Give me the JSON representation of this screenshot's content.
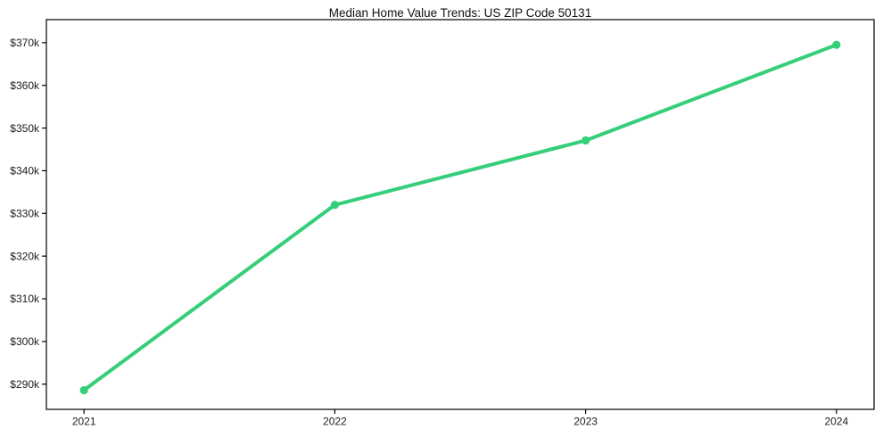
{
  "figure": {
    "background": "#ffffff"
  },
  "chart_data": {
    "type": "line",
    "title": "Median Home Value Trends: US ZIP Code 50131",
    "xlabel": "",
    "ylabel": "",
    "x": [
      2021,
      2022,
      2023,
      2024
    ],
    "x_tick_labels": [
      "2021",
      "2022",
      "2023",
      "2024"
    ],
    "series": [
      {
        "color": "#35ce79",
        "marker": "circle",
        "values": [
          288600,
          332000,
          347100,
          369500
        ]
      }
    ],
    "y_ticks": [
      290000,
      300000,
      310000,
      320000,
      330000,
      340000,
      350000,
      360000,
      370000
    ],
    "y_tick_labels": [
      "$290k",
      "$300k",
      "$310k",
      "$320k",
      "$330k",
      "$340k",
      "$350k",
      "$360k",
      "$370k"
    ],
    "xlim": [
      2020.85,
      2024.15
    ],
    "ylim": [
      284100,
      375400
    ],
    "grid": false,
    "legend": false,
    "frame": true,
    "axis_color": "#000000",
    "text_color": "#1c1c1c"
  }
}
